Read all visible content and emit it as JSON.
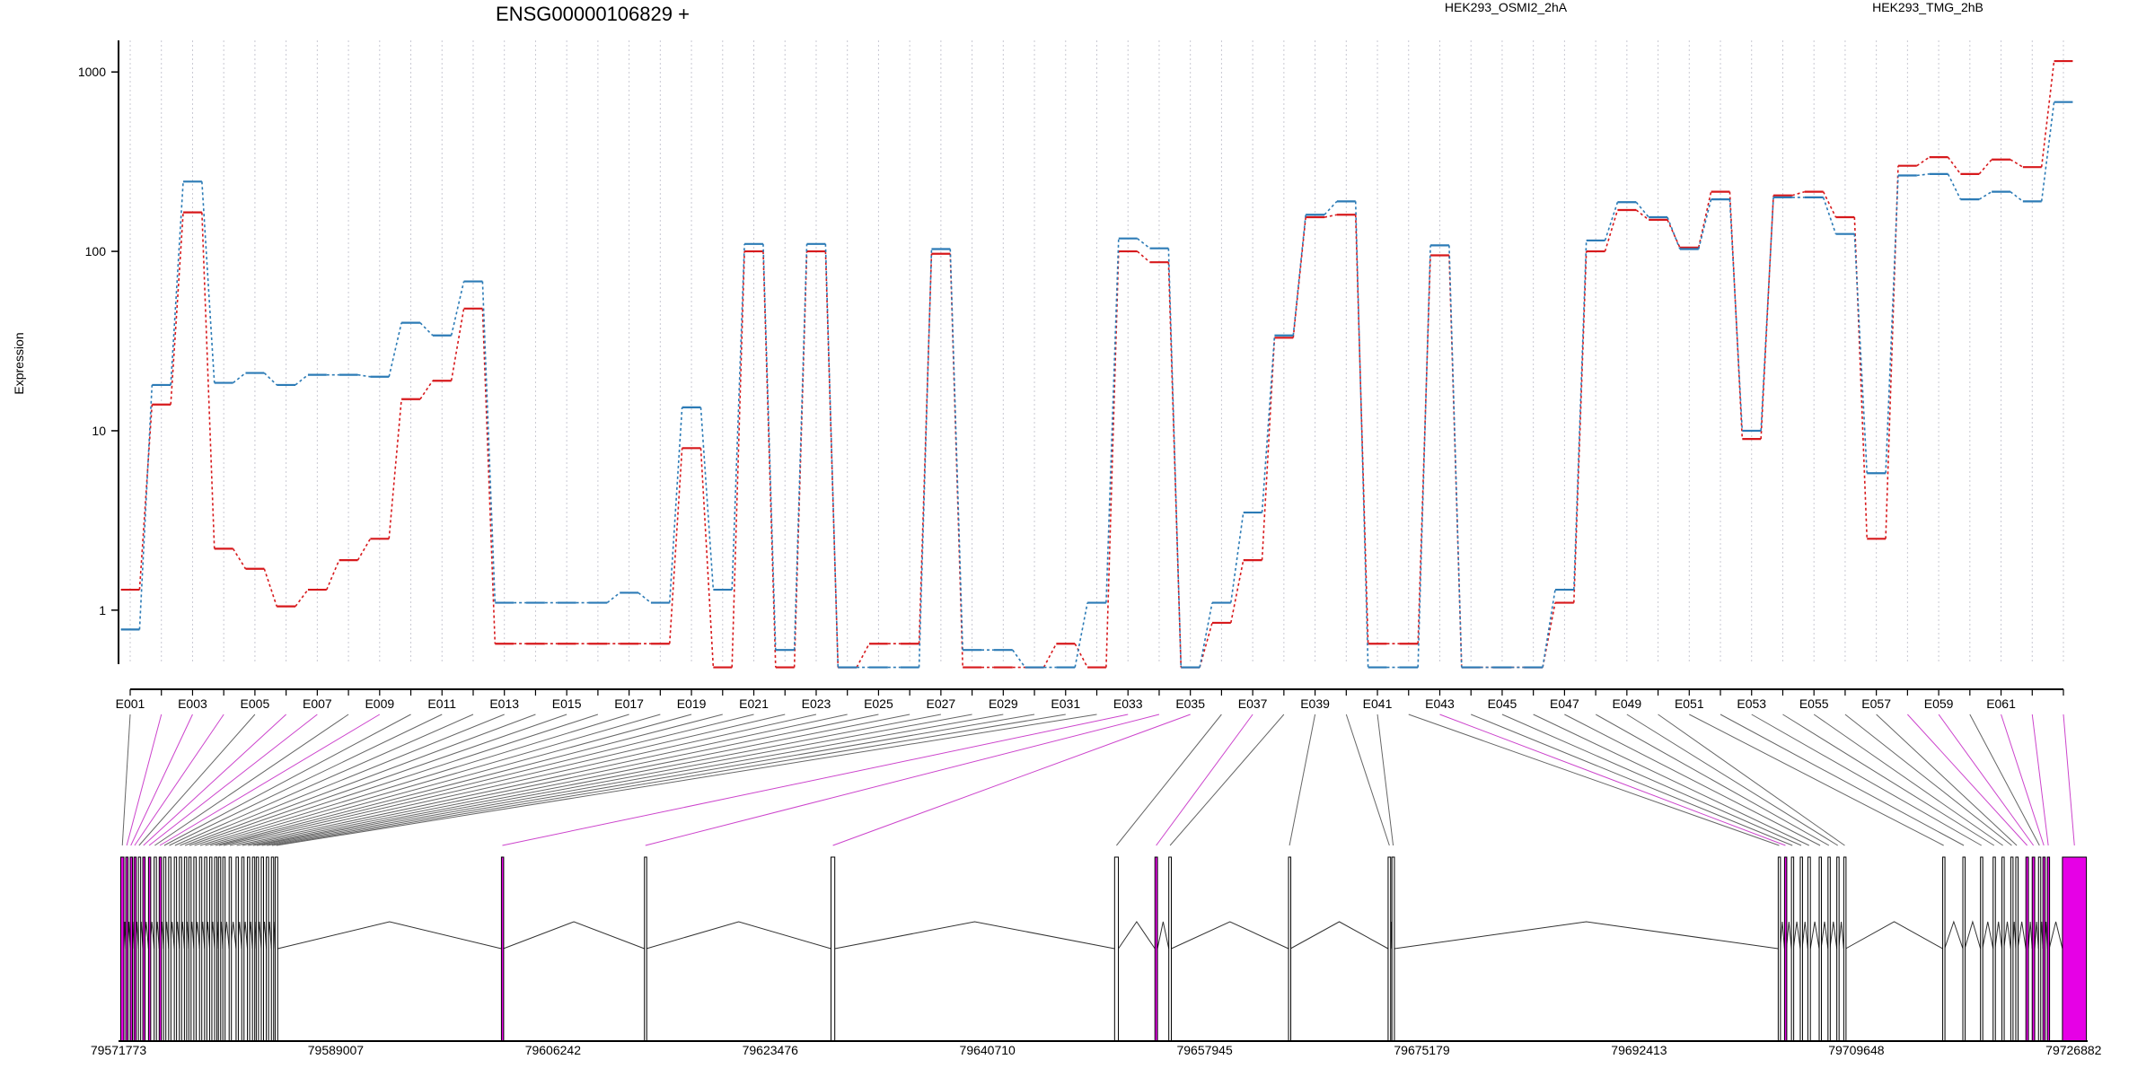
{
  "chart_data": {
    "type": "line",
    "title": "ENSG00000106829 +",
    "ylabel": "Expression",
    "xlabel": "",
    "y_scale": "log",
    "ylim": [
      0.5,
      1500
    ],
    "y_ticks": [
      1,
      10,
      100,
      1000
    ],
    "y_tick_labels": [
      "1",
      "10",
      "100",
      "1000"
    ],
    "grid": "vertical dotted lines at each exon",
    "legend_placement": "top",
    "series": [
      {
        "name": "HEK293_OSMI2_2hA",
        "color": "#d7191c",
        "style": "dashed step",
        "values": [
          1.3,
          14,
          165,
          2.2,
          1.7,
          1.05,
          1.3,
          1.9,
          2.5,
          15,
          19,
          48,
          0.65,
          0.65,
          0.65,
          0.65,
          0.65,
          0.65,
          8,
          0.48,
          100,
          0.48,
          100,
          0.48,
          0.65,
          0.65,
          97,
          0.48,
          0.48,
          0.48,
          0.65,
          0.48,
          100,
          87,
          0.48,
          0.85,
          1.9,
          33,
          155,
          160,
          0.65,
          0.65,
          95,
          0.48,
          0.48,
          0.48,
          1.1,
          100,
          170,
          150,
          105,
          215,
          9,
          205,
          215,
          155,
          2.5,
          300,
          335,
          270,
          325,
          295,
          1150
        ]
      },
      {
        "name": "HEK293_TMG_2hB",
        "color": "#2c7bb6",
        "style": "dashed step",
        "values": [
          0.78,
          18,
          245,
          18.5,
          21,
          18,
          20.5,
          20.5,
          20,
          40,
          34,
          68,
          1.1,
          1.1,
          1.1,
          1.1,
          1.25,
          1.1,
          13.5,
          1.3,
          110,
          0.6,
          110,
          0.48,
          0.48,
          0.48,
          103,
          0.6,
          0.6,
          0.48,
          0.48,
          1.1,
          118,
          104,
          0.48,
          1.1,
          3.5,
          34,
          160,
          190,
          0.48,
          0.48,
          108,
          0.48,
          0.48,
          0.48,
          1.3,
          115,
          188,
          155,
          103,
          195,
          10,
          200,
          200,
          125,
          5.8,
          265,
          270,
          195,
          215,
          190,
          680
        ]
      }
    ],
    "exon_labels": [
      "E001",
      "E003",
      "E005",
      "E007",
      "E009",
      "E011",
      "E013",
      "E015",
      "E017",
      "E019",
      "E021",
      "E023",
      "E025",
      "E027",
      "E029",
      "E031",
      "E033",
      "E035",
      "E037",
      "E039",
      "E041",
      "E043",
      "E045",
      "E047",
      "E049",
      "E051",
      "E053",
      "E055",
      "E057",
      "E059",
      "E061"
    ],
    "genomic_axis_labels": [
      "79571773",
      "79589007",
      "79606242",
      "79623476",
      "79640710",
      "79657945",
      "79675179",
      "79692413",
      "79709648",
      "79726882"
    ],
    "genomic_range": [
      79571773,
      79728000
    ],
    "exon_genomic_start": [
      79571950,
      79572350,
      79572700,
      79573000,
      79573350,
      79573700,
      79574150,
      79574600,
      79575000,
      79575350,
      79575750,
      79576200,
      79576600,
      79577000,
      79577350,
      79577750,
      79578200,
      79578600,
      79579000,
      79579400,
      79579700,
      79580050,
      79580550,
      79581100,
      79581550,
      79582000,
      79582400,
      79582700,
      79583100,
      79583500,
      79583900,
      79584200,
      79602150,
      79613500,
      79628300,
      79650800,
      79654000,
      79655100,
      79664600,
      79672500,
      79672800,
      79703450,
      79703950,
      79704500,
      79705200,
      79705800,
      79706700,
      79707400,
      79708100,
      79708650,
      79716500,
      79718100,
      79719500,
      79720500,
      79721200,
      79721900,
      79722300,
      79723100,
      79723600,
      79724100,
      79724450,
      79724800,
      79726000
    ],
    "exon_widths": [
      250,
      150,
      100,
      100,
      100,
      100,
      100,
      100,
      100,
      100,
      100,
      100,
      100,
      100,
      100,
      100,
      100,
      100,
      100,
      100,
      100,
      100,
      100,
      100,
      100,
      100,
      100,
      100,
      100,
      100,
      100,
      200,
      150,
      150,
      300,
      300,
      200,
      200,
      150,
      200,
      200,
      150,
      150,
      150,
      150,
      200,
      150,
      150,
      150,
      150,
      150,
      150,
      150,
      150,
      150,
      150,
      150,
      200,
      200,
      150,
      150,
      150,
      1900
    ],
    "exon_colors": [
      "#e600e6",
      "#e600e6",
      "#e600e6",
      "#e600e6",
      "#ffffff",
      "#e600e6",
      "#e600e6",
      "#ffffff",
      "#e600e6",
      "#ffffff",
      "#ffffff",
      "#ffffff",
      "#ffffff",
      "#ffffff",
      "#ffffff",
      "#ffffff",
      "#ffffff",
      "#ffffff",
      "#ffffff",
      "#ffffff",
      "#ffffff",
      "#ffffff",
      "#ffffff",
      "#ffffff",
      "#ffffff",
      "#ffffff",
      "#ffffff",
      "#ffffff",
      "#ffffff",
      "#ffffff",
      "#ffffff",
      "#ffffff",
      "#e600e6",
      "#ffffff",
      "#ffffff",
      "#ffffff",
      "#e600e6",
      "#ffffff",
      "#ffffff",
      "#ffffff",
      "#ffffff",
      "#ffffff",
      "#e600e6",
      "#ffffff",
      "#ffffff",
      "#ffffff",
      "#ffffff",
      "#ffffff",
      "#ffffff",
      "#ffffff",
      "#ffffff",
      "#ffffff",
      "#ffffff",
      "#ffffff",
      "#ffffff",
      "#ffffff",
      "#ffffff",
      "#e600e6",
      "#e600e6",
      "#ffffff",
      "#e600e6",
      "#e600e6",
      "#e600e6"
    ],
    "connector_colors": [
      "#666666",
      "#cc44cc",
      "#cc44cc",
      "#cc44cc",
      "#666666",
      "#cc44cc",
      "#cc44cc",
      "#666666",
      "#cc44cc",
      "#666666",
      "#666666",
      "#666666",
      "#666666",
      "#666666",
      "#666666",
      "#666666",
      "#666666",
      "#666666",
      "#666666",
      "#666666",
      "#666666",
      "#666666",
      "#666666",
      "#666666",
      "#666666",
      "#666666",
      "#666666",
      "#666666",
      "#666666",
      "#666666",
      "#666666",
      "#666666",
      "#cc44cc",
      "#cc44cc",
      "#cc44cc",
      "#666666",
      "#cc44cc",
      "#666666",
      "#666666",
      "#666666",
      "#666666",
      "#666666",
      "#cc44cc",
      "#666666",
      "#666666",
      "#666666",
      "#666666",
      "#666666",
      "#666666",
      "#666666",
      "#666666",
      "#666666",
      "#666666",
      "#666666",
      "#666666",
      "#666666",
      "#666666",
      "#cc44cc",
      "#cc44cc",
      "#666666",
      "#cc44cc",
      "#cc44cc",
      "#cc44cc"
    ],
    "intron_line_color": "#333333"
  }
}
